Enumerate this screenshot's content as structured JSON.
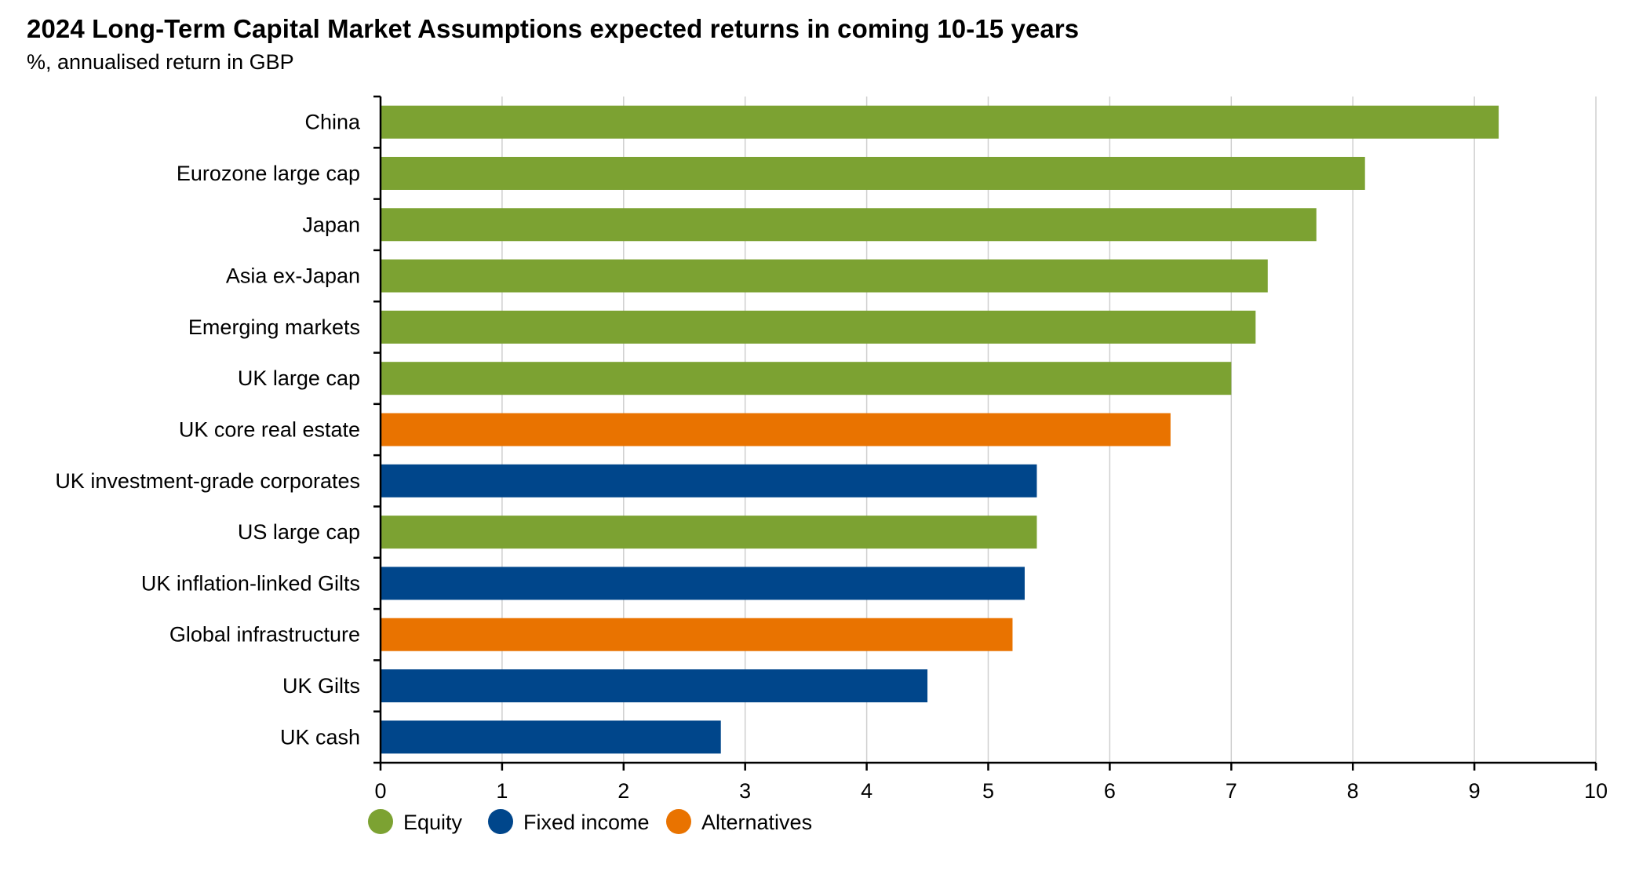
{
  "chart_data": {
    "type": "bar",
    "orientation": "horizontal",
    "title": "2024 Long-Term Capital Market Assumptions expected returns in coming 10-15 years",
    "subtitle": "%, annualised return in GBP",
    "xlabel": "",
    "ylabel": "",
    "xlim": [
      0,
      10
    ],
    "x_ticks": [
      0,
      1,
      2,
      3,
      4,
      5,
      6,
      7,
      8,
      9,
      10
    ],
    "grid": "vertical",
    "legend_position": "bottom-left",
    "colors": {
      "Equity": "#7ca232",
      "Fixed income": "#00468b",
      "Alternatives": "#e97300"
    },
    "legend": [
      {
        "name": "Equity",
        "color": "#7ca232"
      },
      {
        "name": "Fixed income",
        "color": "#00468b"
      },
      {
        "name": "Alternatives",
        "color": "#e97300"
      }
    ],
    "categories": [
      "China",
      "Eurozone large cap",
      "Japan",
      "Asia ex-Japan",
      "Emerging markets",
      "UK large cap",
      "UK core real estate",
      "UK investment-grade corporates",
      "US large cap",
      "UK inflation-linked Gilts",
      "Global infrastructure",
      "UK Gilts",
      "UK cash"
    ],
    "values": [
      9.2,
      8.1,
      7.7,
      7.3,
      7.2,
      7.0,
      6.5,
      5.4,
      5.4,
      5.3,
      5.2,
      4.5,
      2.8
    ],
    "groups": [
      "Equity",
      "Equity",
      "Equity",
      "Equity",
      "Equity",
      "Equity",
      "Alternatives",
      "Fixed income",
      "Equity",
      "Fixed income",
      "Alternatives",
      "Fixed income",
      "Fixed income"
    ]
  }
}
